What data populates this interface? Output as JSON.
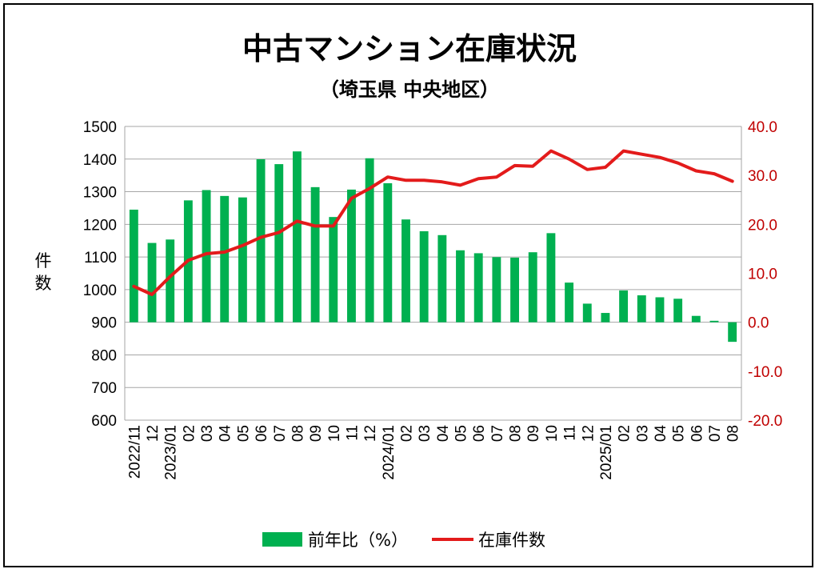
{
  "chart_data": {
    "type": "bar+line",
    "title": "中古マンション在庫状況",
    "subtitle": "（埼玉県 中央地区）",
    "ylabel_left": "件数",
    "left_axis": {
      "min": 600,
      "max": 1500,
      "step": 100,
      "ticks": [
        "600",
        "700",
        "800",
        "900",
        "1000",
        "1100",
        "1200",
        "1300",
        "1400",
        "1500"
      ]
    },
    "right_axis": {
      "min": -20,
      "max": 40,
      "step": 10,
      "ticks": [
        "-20.0",
        "-10.0",
        "0.0",
        "10.0",
        "20.0",
        "30.0",
        "40.0"
      ]
    },
    "categories": [
      "2022/11",
      "12",
      "2023/01",
      "02",
      "03",
      "04",
      "05",
      "06",
      "07",
      "08",
      "09",
      "10",
      "11",
      "12",
      "2024/01",
      "02",
      "03",
      "04",
      "05",
      "06",
      "07",
      "08",
      "09",
      "10",
      "11",
      "12",
      "2025/01",
      "02",
      "03",
      "04",
      "05",
      "06",
      "07",
      "08"
    ],
    "series": [
      {
        "name": "前年比（%）",
        "axis": "right",
        "kind": "bar",
        "color": "#00b050",
        "values": [
          23.0,
          16.2,
          16.9,
          24.9,
          27.0,
          25.8,
          25.5,
          33.3,
          32.3,
          34.9,
          27.6,
          21.5,
          27.1,
          33.5,
          28.4,
          21.0,
          18.6,
          17.8,
          14.7,
          14.1,
          13.3,
          13.2,
          14.3,
          18.2,
          8.1,
          3.8,
          1.9,
          6.5,
          5.5,
          5.1,
          4.8,
          1.3,
          0.3,
          -4.0
        ]
      },
      {
        "name": "在庫件数",
        "axis": "left",
        "kind": "line",
        "color": "#e31b1b",
        "values": [
          1010,
          985,
          1040,
          1090,
          1110,
          1115,
          1135,
          1160,
          1175,
          1210,
          1195,
          1195,
          1280,
          1310,
          1345,
          1335,
          1335,
          1330,
          1320,
          1340,
          1345,
          1380,
          1378,
          1425,
          1400,
          1368,
          1375,
          1425,
          1415,
          1405,
          1388,
          1364,
          1355,
          1332
        ]
      }
    ],
    "legend": [
      "前年比（%）",
      "在庫件数"
    ],
    "legend_position": "bottom",
    "grid": true
  }
}
